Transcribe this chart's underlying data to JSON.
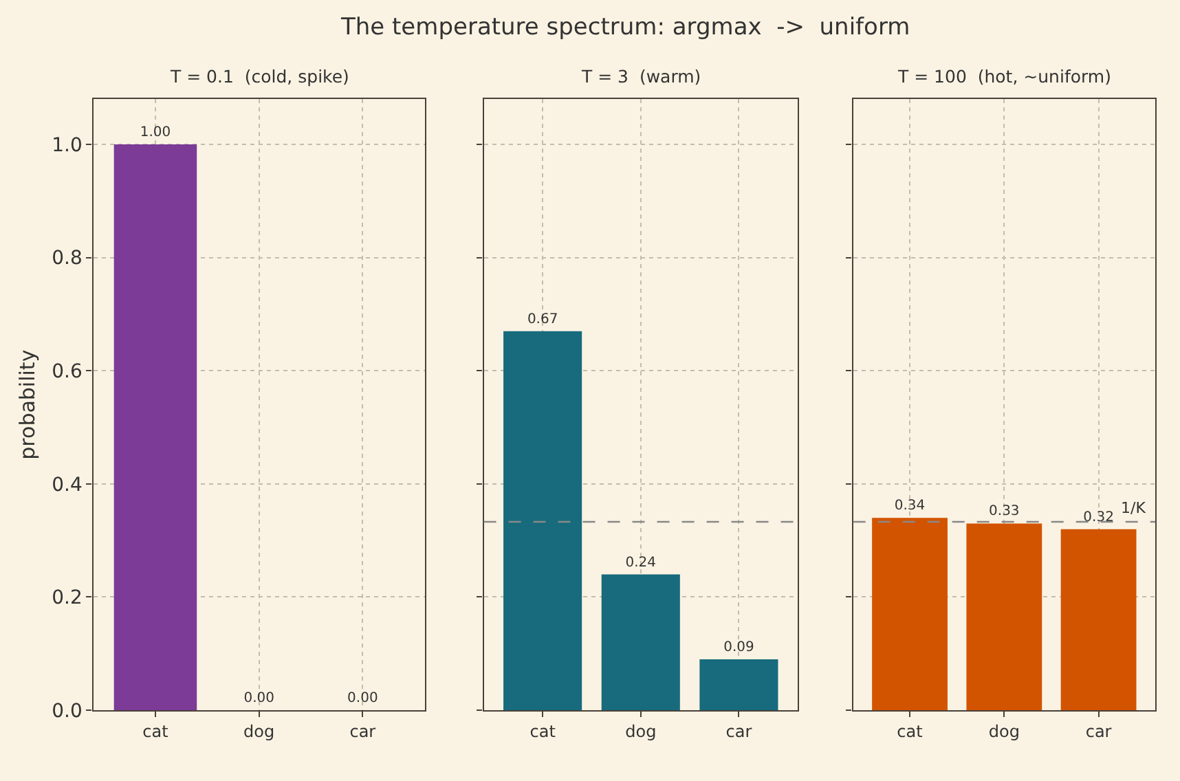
{
  "chart_data": [
    {
      "type": "bar",
      "title": "The temperature spectrum: argmax  ->  uniform",
      "subtitle": "T = 0.1  (cold, spike)",
      "ylabel": "probability",
      "categories": [
        "cat",
        "dog",
        "car"
      ],
      "values": [
        1.0,
        0.0,
        0.0
      ],
      "value_labels": [
        "1.00",
        "0.00",
        "0.00"
      ],
      "color": "#7b3b96",
      "ylim": [
        0,
        1.08
      ],
      "yticks": [
        {
          "value": 0,
          "label": "0.0"
        },
        {
          "value": 0.2,
          "label": "0.2"
        },
        {
          "value": 0.4,
          "label": "0.4"
        },
        {
          "value": 0.6,
          "label": "0.6"
        },
        {
          "value": 0.8,
          "label": "0.8"
        },
        {
          "value": 1.0,
          "label": "1.0"
        }
      ],
      "grid": true
    },
    {
      "type": "bar",
      "subtitle": "T = 3  (warm)",
      "categories": [
        "cat",
        "dog",
        "car"
      ],
      "values": [
        0.67,
        0.24,
        0.09
      ],
      "value_labels": [
        "0.67",
        "0.24",
        "0.09"
      ],
      "color": "#176b7d",
      "ylim": [
        0,
        1.08
      ],
      "yticks": [
        {
          "value": 0,
          "label": null
        },
        {
          "value": 0.2,
          "label": null
        },
        {
          "value": 0.4,
          "label": null
        },
        {
          "value": 0.6,
          "label": null
        },
        {
          "value": 0.8,
          "label": null
        },
        {
          "value": 1.0,
          "label": null
        }
      ],
      "grid": true,
      "tick_labels": "x",
      "ref_lines": [
        {
          "axis": "y",
          "value": 0.333,
          "label": null,
          "color": "#888888",
          "line_style": "dashed"
        }
      ]
    },
    {
      "type": "bar",
      "subtitle": "T = 100  (hot, ~uniform)",
      "categories": [
        "cat",
        "dog",
        "car"
      ],
      "values": [
        0.34,
        0.33,
        0.32
      ],
      "value_labels": [
        "0.34",
        "0.33",
        "0.32"
      ],
      "color": "#d35400",
      "ylim": [
        0,
        1.08
      ],
      "yticks": [
        {
          "value": 0,
          "label": null
        },
        {
          "value": 0.2,
          "label": null
        },
        {
          "value": 0.4,
          "label": null
        },
        {
          "value": 0.6,
          "label": null
        },
        {
          "value": 0.8,
          "label": null
        },
        {
          "value": 1.0,
          "label": null
        }
      ],
      "grid": true,
      "tick_labels": "x",
      "ref_lines": [
        {
          "axis": "y",
          "value": 0.333,
          "label": "1/K",
          "color": "#888888",
          "line_style": "dashed"
        }
      ]
    }
  ]
}
